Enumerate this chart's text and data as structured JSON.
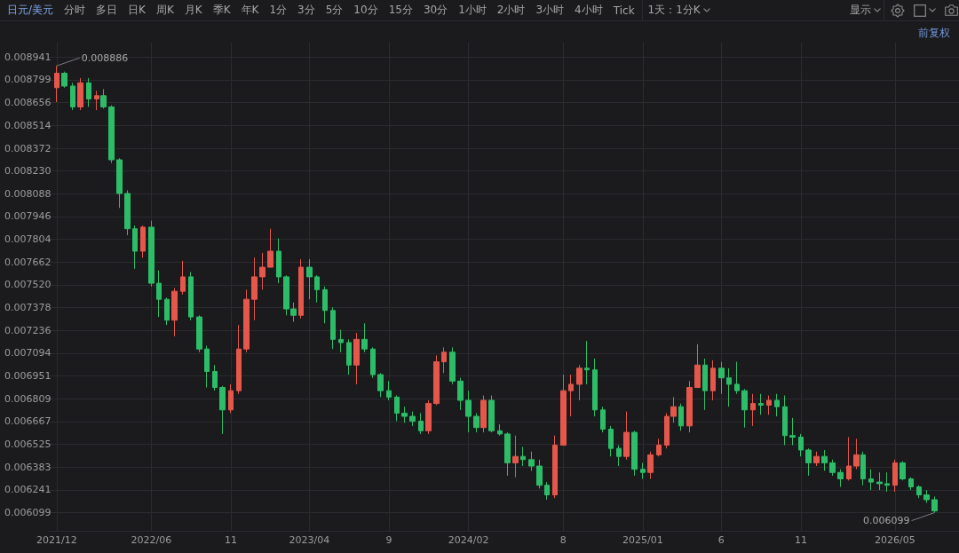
{
  "chart_data": {
    "type": "candlestick",
    "title": "日元/美元",
    "annotations": [
      "分时",
      "多日",
      "日K",
      "周K",
      "月K",
      "季K",
      "年K",
      "1分",
      "3分",
      "5分",
      "10分",
      "15分",
      "30分",
      "1小时",
      "2小时",
      "3小时",
      "4小时",
      "Tick",
      "1天：1分K",
      "显示",
      "前复权",
      {
        "text": "0.008886",
        "x": "2021-12-01",
        "y": 0.008886
      },
      {
        "text": "0.006099",
        "x": "2026-07-16",
        "y": 0.006099
      }
    ],
    "x": [
      "2021-12-01",
      "2021-12-16",
      "2022-01-01",
      "2022-01-16",
      "2022-02-01",
      "2022-02-16",
      "2022-03-01",
      "2022-03-16",
      "2022-04-01",
      "2022-04-16",
      "2022-05-01",
      "2022-05-16",
      "2022-06-01",
      "2022-06-16",
      "2022-07-01",
      "2022-07-16",
      "2022-08-01",
      "2022-08-16",
      "2022-09-01",
      "2022-09-16",
      "2022-10-01",
      "2022-10-16",
      "2022-11-01",
      "2022-11-16",
      "2022-12-01",
      "2022-12-16",
      "2023-01-01",
      "2023-01-16",
      "2023-02-01",
      "2023-02-16",
      "2023-03-01",
      "2023-03-16",
      "2023-04-01",
      "2023-04-16",
      "2023-05-01",
      "2023-05-16",
      "2023-06-01",
      "2023-06-16",
      "2023-07-01",
      "2023-07-16",
      "2023-08-01",
      "2023-08-16",
      "2023-09-01",
      "2023-09-16",
      "2023-10-01",
      "2023-10-16",
      "2023-11-01",
      "2023-11-16",
      "2023-12-01",
      "2023-12-16",
      "2024-01-01",
      "2024-01-16",
      "2024-02-01",
      "2024-02-16",
      "2024-03-01",
      "2024-03-16",
      "2024-04-01",
      "2024-04-16",
      "2024-05-01",
      "2024-05-16",
      "2024-06-01",
      "2024-06-16",
      "2024-07-01",
      "2024-07-16",
      "2024-08-01",
      "2024-08-16",
      "2024-09-01",
      "2024-09-16",
      "2024-10-01",
      "2024-10-16",
      "2024-11-01",
      "2024-11-16",
      "2024-12-01",
      "2024-12-16",
      "2025-01-01",
      "2025-01-16",
      "2025-02-01",
      "2025-02-16",
      "2025-03-01",
      "2025-03-16",
      "2025-04-01",
      "2025-04-16",
      "2025-05-01",
      "2025-05-16",
      "2025-06-01",
      "2025-06-16",
      "2025-07-01",
      "2025-07-16",
      "2025-08-01",
      "2025-08-16",
      "2025-09-01",
      "2025-09-16",
      "2025-10-01",
      "2025-10-16",
      "2025-11-01",
      "2025-11-16",
      "2025-12-01",
      "2025-12-16",
      "2026-01-01",
      "2026-01-16",
      "2026-02-01",
      "2026-02-16",
      "2026-03-01",
      "2026-03-16",
      "2026-04-01",
      "2026-04-16",
      "2026-05-01",
      "2026-05-16",
      "2026-06-01",
      "2026-06-16",
      "2026-07-01",
      "2026-07-16"
    ],
    "ohlc": [
      [
        0.00875,
        0.008886,
        0.00866,
        0.00884
      ],
      [
        0.00884,
        0.00885,
        0.00875,
        0.00876
      ],
      [
        0.00876,
        0.00878,
        0.00861,
        0.00863
      ],
      [
        0.00863,
        0.00881,
        0.00861,
        0.00878
      ],
      [
        0.00878,
        0.00881,
        0.00863,
        0.00868
      ],
      [
        0.00868,
        0.00873,
        0.00861,
        0.0087
      ],
      [
        0.0087,
        0.00874,
        0.00862,
        0.00863
      ],
      [
        0.00863,
        0.00864,
        0.00828,
        0.0083
      ],
      [
        0.0083,
        0.00831,
        0.008,
        0.00809
      ],
      [
        0.00809,
        0.00811,
        0.00783,
        0.00787
      ],
      [
        0.00787,
        0.00789,
        0.00762,
        0.00773
      ],
      [
        0.00773,
        0.00789,
        0.00769,
        0.00788
      ],
      [
        0.00788,
        0.00792,
        0.00751,
        0.00753
      ],
      [
        0.00753,
        0.00761,
        0.00732,
        0.00743
      ],
      [
        0.00743,
        0.00744,
        0.00727,
        0.0073
      ],
      [
        0.0073,
        0.0075,
        0.0072,
        0.00748
      ],
      [
        0.00748,
        0.00767,
        0.00746,
        0.00757
      ],
      [
        0.00757,
        0.0076,
        0.0073,
        0.00732
      ],
      [
        0.00732,
        0.00733,
        0.0071,
        0.00712
      ],
      [
        0.00712,
        0.00714,
        0.00688,
        0.00698
      ],
      [
        0.00698,
        0.00702,
        0.00686,
        0.00688
      ],
      [
        0.00688,
        0.00689,
        0.00659,
        0.00674
      ],
      [
        0.00674,
        0.0069,
        0.00672,
        0.00686
      ],
      [
        0.00686,
        0.00727,
        0.00684,
        0.00712
      ],
      [
        0.00712,
        0.00749,
        0.0071,
        0.00743
      ],
      [
        0.00743,
        0.00769,
        0.0073,
        0.00757
      ],
      [
        0.00757,
        0.00772,
        0.00749,
        0.00763
      ],
      [
        0.00763,
        0.00787,
        0.00763,
        0.00773
      ],
      [
        0.00773,
        0.00781,
        0.00753,
        0.00757
      ],
      [
        0.00757,
        0.00758,
        0.00733,
        0.00737
      ],
      [
        0.00737,
        0.00741,
        0.00729,
        0.00733
      ],
      [
        0.00733,
        0.00768,
        0.00731,
        0.00763
      ],
      [
        0.00763,
        0.00768,
        0.00743,
        0.00757
      ],
      [
        0.00757,
        0.00758,
        0.00741,
        0.00749
      ],
      [
        0.00749,
        0.00751,
        0.00728,
        0.00736
      ],
      [
        0.00736,
        0.00738,
        0.00712,
        0.00718
      ],
      [
        0.00718,
        0.00724,
        0.0071,
        0.00716
      ],
      [
        0.00716,
        0.00718,
        0.00696,
        0.00702
      ],
      [
        0.00702,
        0.00722,
        0.0069,
        0.00718
      ],
      [
        0.00718,
        0.00728,
        0.0071,
        0.00712
      ],
      [
        0.00712,
        0.00713,
        0.00694,
        0.00696
      ],
      [
        0.00696,
        0.00697,
        0.00682,
        0.00686
      ],
      [
        0.00686,
        0.00692,
        0.0068,
        0.00682
      ],
      [
        0.00682,
        0.00683,
        0.00667,
        0.00672
      ],
      [
        0.00672,
        0.00676,
        0.00666,
        0.0067
      ],
      [
        0.0067,
        0.00673,
        0.00664,
        0.00667
      ],
      [
        0.00667,
        0.00672,
        0.00659,
        0.00661
      ],
      [
        0.00661,
        0.0068,
        0.00659,
        0.00678
      ],
      [
        0.00678,
        0.00708,
        0.00677,
        0.00704
      ],
      [
        0.00704,
        0.00713,
        0.00697,
        0.0071
      ],
      [
        0.0071,
        0.00713,
        0.0069,
        0.00692
      ],
      [
        0.00692,
        0.00694,
        0.00674,
        0.0068
      ],
      [
        0.0068,
        0.00686,
        0.0066,
        0.0067
      ],
      [
        0.0067,
        0.00672,
        0.0066,
        0.00663
      ],
      [
        0.00663,
        0.00683,
        0.0066,
        0.0068
      ],
      [
        0.0068,
        0.00683,
        0.0066,
        0.00661
      ],
      [
        0.00661,
        0.00665,
        0.00658,
        0.00659
      ],
      [
        0.00659,
        0.0066,
        0.00633,
        0.00641
      ],
      [
        0.00641,
        0.00658,
        0.00632,
        0.00645
      ],
      [
        0.00645,
        0.00651,
        0.00639,
        0.00643
      ],
      [
        0.00643,
        0.00648,
        0.00636,
        0.00639
      ],
      [
        0.00639,
        0.00643,
        0.00625,
        0.00627
      ],
      [
        0.00627,
        0.00629,
        0.00618,
        0.00621
      ],
      [
        0.00621,
        0.00658,
        0.00619,
        0.00652
      ],
      [
        0.00652,
        0.00696,
        0.00652,
        0.00686
      ],
      [
        0.00686,
        0.00696,
        0.0067,
        0.0069
      ],
      [
        0.0069,
        0.00702,
        0.0068,
        0.007
      ],
      [
        0.007,
        0.00717,
        0.0069,
        0.00699
      ],
      [
        0.00699,
        0.00706,
        0.0067,
        0.00674
      ],
      [
        0.00674,
        0.00676,
        0.0066,
        0.00662
      ],
      [
        0.00662,
        0.00664,
        0.00645,
        0.0065
      ],
      [
        0.0065,
        0.00652,
        0.00639,
        0.00645
      ],
      [
        0.00645,
        0.00673,
        0.00643,
        0.0066
      ],
      [
        0.0066,
        0.00661,
        0.00633,
        0.00637
      ],
      [
        0.00637,
        0.00641,
        0.00631,
        0.00635
      ],
      [
        0.00635,
        0.00648,
        0.00631,
        0.00646
      ],
      [
        0.00646,
        0.00656,
        0.00645,
        0.00652
      ],
      [
        0.00652,
        0.00672,
        0.0065,
        0.0067
      ],
      [
        0.0067,
        0.00682,
        0.00666,
        0.00676
      ],
      [
        0.00676,
        0.00678,
        0.00661,
        0.00664
      ],
      [
        0.00664,
        0.00692,
        0.0066,
        0.00688
      ],
      [
        0.00688,
        0.00715,
        0.00688,
        0.00702
      ],
      [
        0.00702,
        0.00706,
        0.00674,
        0.00686
      ],
      [
        0.00686,
        0.00705,
        0.0068,
        0.007
      ],
      [
        0.007,
        0.00704,
        0.00684,
        0.00694
      ],
      [
        0.00694,
        0.007,
        0.00676,
        0.0069
      ],
      [
        0.0069,
        0.00704,
        0.00684,
        0.00686
      ],
      [
        0.00686,
        0.00687,
        0.00663,
        0.00674
      ],
      [
        0.00674,
        0.00684,
        0.00664,
        0.00678
      ],
      [
        0.00678,
        0.00684,
        0.00671,
        0.00677
      ],
      [
        0.00677,
        0.00683,
        0.00671,
        0.0068
      ],
      [
        0.0068,
        0.00684,
        0.0067,
        0.00676
      ],
      [
        0.00676,
        0.00683,
        0.00652,
        0.00658
      ],
      [
        0.00658,
        0.00669,
        0.00652,
        0.00657
      ],
      [
        0.00657,
        0.00659,
        0.00645,
        0.00649
      ],
      [
        0.00649,
        0.0065,
        0.00633,
        0.00641
      ],
      [
        0.00641,
        0.00648,
        0.00639,
        0.00645
      ],
      [
        0.00645,
        0.00649,
        0.00636,
        0.00641
      ],
      [
        0.00641,
        0.00643,
        0.00633,
        0.00635
      ],
      [
        0.00635,
        0.00637,
        0.00626,
        0.00631
      ],
      [
        0.00631,
        0.00657,
        0.0063,
        0.00639
      ],
      [
        0.00639,
        0.00656,
        0.00637,
        0.00646
      ],
      [
        0.00646,
        0.00648,
        0.00627,
        0.00631
      ],
      [
        0.00631,
        0.00637,
        0.00624,
        0.00629
      ],
      [
        0.00629,
        0.00635,
        0.00624,
        0.00628
      ],
      [
        0.00628,
        0.00635,
        0.00623,
        0.00627
      ],
      [
        0.00627,
        0.00643,
        0.00623,
        0.00641
      ],
      [
        0.00641,
        0.00642,
        0.0063,
        0.00631
      ],
      [
        0.00631,
        0.00632,
        0.00624,
        0.00626
      ],
      [
        0.00626,
        0.00627,
        0.00619,
        0.00621
      ],
      [
        0.00621,
        0.00624,
        0.00616,
        0.00618
      ],
      [
        0.00618,
        0.0062,
        0.006099,
        0.00611
      ]
    ],
    "colors": [
      "#e5574b",
      "#2dbd68",
      "#2dbd68",
      "#e5574b",
      "#2dbd68",
      "#e5574b",
      "#2dbd68",
      "#2dbd68",
      "#2dbd68",
      "#2dbd68",
      "#2dbd68",
      "#e5574b",
      "#2dbd68",
      "#2dbd68",
      "#2dbd68",
      "#e5574b",
      "#e5574b",
      "#2dbd68",
      "#2dbd68",
      "#2dbd68",
      "#2dbd68",
      "#2dbd68",
      "#e5574b",
      "#e5574b",
      "#e5574b",
      "#e5574b",
      "#e5574b",
      "#e5574b",
      "#2dbd68",
      "#2dbd68",
      "#2dbd68",
      "#e5574b",
      "#2dbd68",
      "#2dbd68",
      "#2dbd68",
      "#2dbd68",
      "#2dbd68",
      "#2dbd68",
      "#e5574b",
      "#2dbd68",
      "#2dbd68",
      "#2dbd68",
      "#2dbd68",
      "#2dbd68",
      "#2dbd68",
      "#2dbd68",
      "#2dbd68",
      "#e5574b",
      "#e5574b",
      "#e5574b",
      "#2dbd68",
      "#2dbd68",
      "#2dbd68",
      "#2dbd68",
      "#e5574b",
      "#2dbd68",
      "#2dbd68",
      "#2dbd68",
      "#e5574b",
      "#2dbd68",
      "#2dbd68",
      "#2dbd68",
      "#2dbd68",
      "#e5574b",
      "#e5574b",
      "#e5574b",
      "#e5574b",
      "#2dbd68",
      "#2dbd68",
      "#2dbd68",
      "#2dbd68",
      "#2dbd68",
      "#e5574b",
      "#2dbd68",
      "#2dbd68",
      "#e5574b",
      "#e5574b",
      "#e5574b",
      "#e5574b",
      "#2dbd68",
      "#e5574b",
      "#e5574b",
      "#2dbd68",
      "#e5574b",
      "#2dbd68",
      "#2dbd68",
      "#2dbd68",
      "#2dbd68",
      "#e5574b",
      "#2dbd68",
      "#e5574b",
      "#2dbd68",
      "#2dbd68",
      "#2dbd68",
      "#2dbd68",
      "#2dbd68",
      "#e5574b",
      "#2dbd68",
      "#2dbd68",
      "#2dbd68",
      "#e5574b",
      "#e5574b",
      "#2dbd68",
      "#2dbd68",
      "#2dbd68",
      "#2dbd68",
      "#e5574b",
      "#2dbd68",
      "#2dbd68",
      "#2dbd68",
      "#2dbd68",
      "#2dbd68"
    ],
    "xlim": [
      "2021-11-16",
      "2026-09-01"
    ],
    "xticks": [
      {
        "value": "2021-12",
        "label": "2021/12"
      },
      {
        "value": "2022-06",
        "label": "2022/06"
      },
      {
        "value": "2022-11",
        "label": "11"
      },
      {
        "value": "2023-04",
        "label": "2023/04"
      },
      {
        "value": "2023-09",
        "label": "9"
      },
      {
        "value": "2024-02",
        "label": "2024/02"
      },
      {
        "value": "2024-08",
        "label": "8"
      },
      {
        "value": "2025-01",
        "label": "2025/01"
      },
      {
        "value": "2025-06",
        "label": "6"
      },
      {
        "value": "2025-11",
        "label": "11"
      },
      {
        "value": "2026-05",
        "label": "2026/05"
      }
    ],
    "ylim": [
      0.005986,
      0.009031
    ],
    "yticks": [
      0.006099,
      0.006241,
      0.006383,
      0.006525,
      0.006667,
      0.006809,
      0.006951,
      0.007094,
      0.007236,
      0.007378,
      {
        "value": 0.00752,
        "label": "0.007520"
      },
      0.007662,
      0.007804,
      0.007946,
      0.008088,
      {
        "value": 0.00823,
        "label": "0.008230"
      },
      0.008372,
      0.008514,
      0.008656,
      0.008799,
      0.008941
    ],
    "grid": true
  }
}
